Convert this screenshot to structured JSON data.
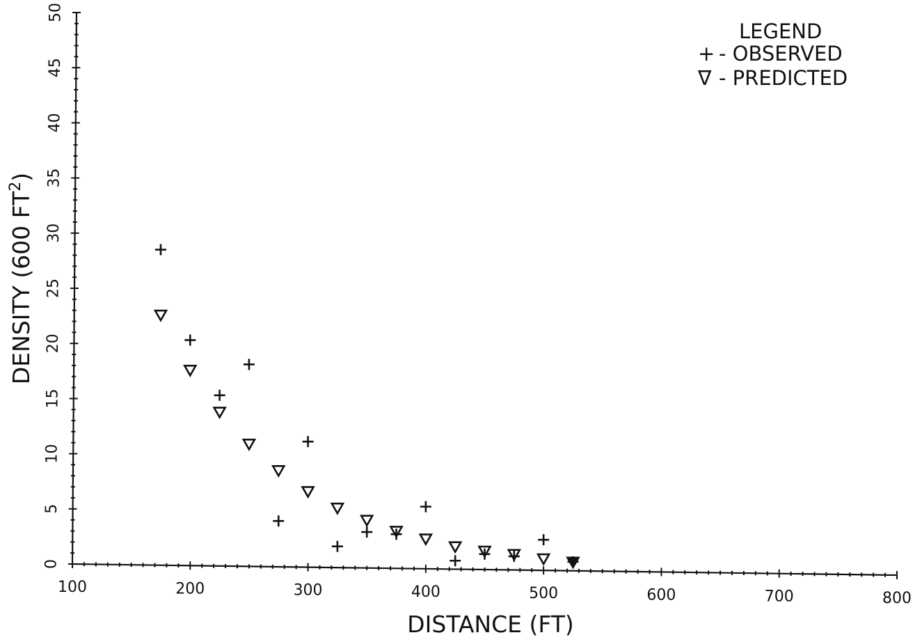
{
  "chart_data": {
    "type": "scatter",
    "xlabel": "DISTANCE (FT)",
    "ylabel_main": "DENSITY (600 FT",
    "ylabel_sup": "2",
    "ylabel_close": ")",
    "xlim": [
      100,
      800
    ],
    "ylim": [
      0,
      50
    ],
    "x_ticks": [
      100,
      200,
      300,
      400,
      500,
      600,
      700,
      800
    ],
    "y_ticks": [
      0,
      5,
      10,
      15,
      20,
      25,
      30,
      35,
      40,
      45,
      50
    ],
    "x_tick_labels": [
      "100",
      "200",
      "300",
      "400",
      "500",
      "600",
      "700",
      "800"
    ],
    "y_tick_labels": [
      "0",
      "5",
      "10",
      "15",
      "20",
      "25",
      "30",
      "35",
      "40",
      "45",
      "50"
    ],
    "grid": false,
    "legend": {
      "title": "LEGEND",
      "position": "top-right",
      "entries": [
        {
          "symbol": "+",
          "text": "- OBSERVED"
        },
        {
          "symbol": "∇",
          "text": "- PREDICTED"
        }
      ]
    },
    "series": [
      {
        "name": "OBSERVED",
        "marker": "plus",
        "points": [
          [
            175,
            28.5
          ],
          [
            200,
            20.3
          ],
          [
            225,
            15.3
          ],
          [
            250,
            18.1
          ],
          [
            275,
            3.9
          ],
          [
            300,
            11.1
          ],
          [
            325,
            1.6
          ],
          [
            350,
            2.9
          ],
          [
            375,
            2.7
          ],
          [
            400,
            5.2
          ],
          [
            425,
            0.3
          ],
          [
            450,
            0.9
          ],
          [
            475,
            0.7
          ],
          [
            500,
            2.2
          ],
          [
            525,
            0.2
          ]
        ]
      },
      {
        "name": "PREDICTED",
        "marker": "triangle-down",
        "points": [
          [
            175,
            22.6
          ],
          [
            200,
            17.6
          ],
          [
            225,
            13.8
          ],
          [
            250,
            10.9
          ],
          [
            275,
            8.5
          ],
          [
            300,
            6.6
          ],
          [
            325,
            5.1
          ],
          [
            350,
            4.0
          ],
          [
            375,
            3.0
          ],
          [
            400,
            2.3
          ],
          [
            425,
            1.6
          ],
          [
            450,
            1.2
          ],
          [
            475,
            0.9
          ],
          [
            500,
            0.5
          ],
          [
            525,
            0.2
          ]
        ]
      }
    ]
  }
}
